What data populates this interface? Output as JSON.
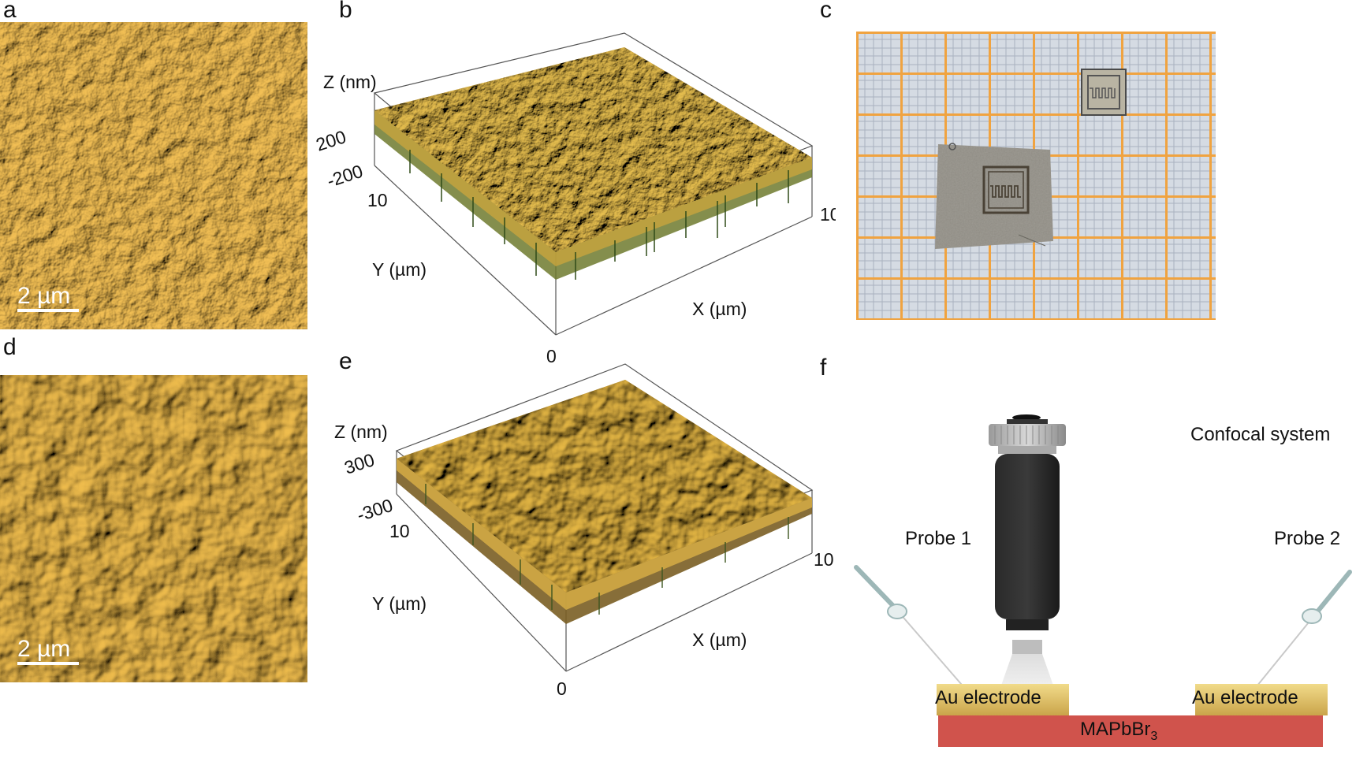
{
  "panels": {
    "a": {
      "letter": "a",
      "scalebar": "2 µm"
    },
    "b": {
      "letter": "b",
      "z_label": "Z (nm)",
      "z_top": "200",
      "z_bottom": "-200",
      "y_label": "Y (µm)",
      "y_max": "10",
      "x_label": "X (µm)",
      "x_max": "10",
      "origin": "0"
    },
    "c": {
      "letter": "c"
    },
    "d": {
      "letter": "d",
      "scalebar": "2 µm"
    },
    "e": {
      "letter": "e",
      "z_label": "Z (nm)",
      "z_top": "300",
      "z_bottom": "-300",
      "y_label": "Y (µm)",
      "y_max": "10",
      "x_label": "X (µm)",
      "x_max": "10",
      "origin": "0"
    },
    "f": {
      "letter": "f",
      "confocal": "Confocal system",
      "probe1": "Probe 1",
      "probe2": "Probe 2",
      "electrode_left": "Au electrode",
      "electrode_right": "Au electrode",
      "substrate": "MAPbBr",
      "substrate_sub": "3"
    }
  },
  "colors": {
    "afm_gold": "#d4a23a",
    "afm_dark": "#6b4a10",
    "substrate_red": "#d0534c",
    "electrode_gold": "#e3c46c",
    "grid_orange": "#f0a340",
    "objective_black": "#222222"
  }
}
